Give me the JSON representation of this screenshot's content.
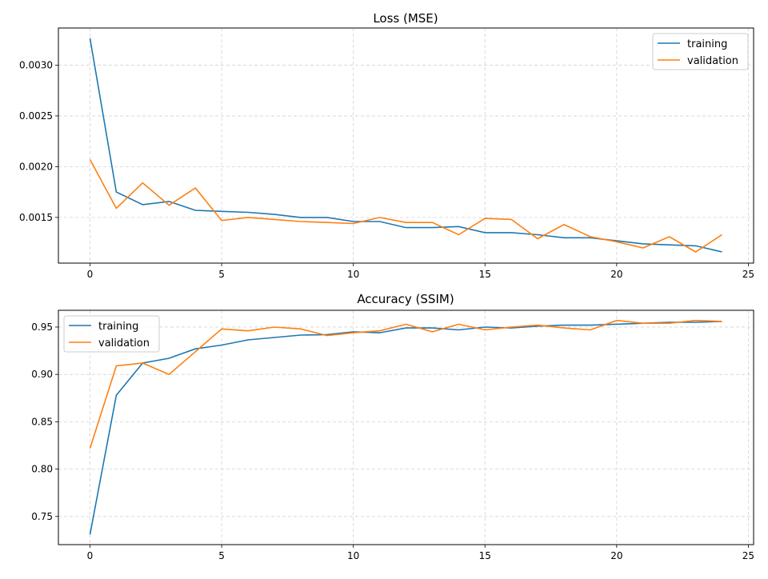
{
  "chart_data": [
    {
      "type": "line",
      "title": "Loss (MSE)",
      "xlabel": "",
      "ylabel": "",
      "xlim": [
        -1.2,
        25.2
      ],
      "ylim": [
        0.00105,
        0.003366
      ],
      "xticks": [
        0,
        5,
        10,
        15,
        20,
        25
      ],
      "xtick_labels": [
        "0",
        "5",
        "10",
        "15",
        "20",
        "25"
      ],
      "yticks": [
        0.0015,
        0.002,
        0.0025,
        0.003
      ],
      "ytick_labels": [
        "0.0015",
        "0.0020",
        "0.0025",
        "0.0030"
      ],
      "grid": true,
      "legend": "top-right",
      "x": [
        0,
        1,
        2,
        3,
        4,
        5,
        6,
        7,
        8,
        9,
        10,
        11,
        12,
        13,
        14,
        15,
        16,
        17,
        18,
        19,
        20,
        21,
        22,
        23,
        24
      ],
      "series": [
        {
          "name": "training",
          "color": "#1f77b4",
          "values": [
            0.003264,
            0.00175,
            0.001626,
            0.001657,
            0.00157,
            0.00156,
            0.00155,
            0.00153,
            0.0015,
            0.0015,
            0.00146,
            0.00146,
            0.0014,
            0.0014,
            0.00141,
            0.00135,
            0.00135,
            0.00133,
            0.0013,
            0.0013,
            0.00127,
            0.00124,
            0.00123,
            0.00122,
            0.00116
          ]
        },
        {
          "name": "validation",
          "color": "#ff7f0e",
          "values": [
            0.00207,
            0.00159,
            0.00184,
            0.00162,
            0.00179,
            0.00147,
            0.0015,
            0.00148,
            0.00146,
            0.00145,
            0.00144,
            0.0015,
            0.00145,
            0.00145,
            0.00133,
            0.00149,
            0.00148,
            0.00129,
            0.00143,
            0.00131,
            0.00126,
            0.0012,
            0.00131,
            0.00116,
            0.00133
          ]
        }
      ]
    },
    {
      "type": "line",
      "title": "Accuracy (SSIM)",
      "xlabel": "",
      "ylabel": "",
      "xlim": [
        -1.2,
        25.2
      ],
      "ylim": [
        0.7203,
        0.9677
      ],
      "xticks": [
        0,
        5,
        10,
        15,
        20,
        25
      ],
      "xtick_labels": [
        "0",
        "5",
        "10",
        "15",
        "20",
        "25"
      ],
      "yticks": [
        0.75,
        0.8,
        0.85,
        0.9,
        0.95
      ],
      "ytick_labels": [
        "0.75",
        "0.80",
        "0.85",
        "0.90",
        "0.95"
      ],
      "grid": true,
      "legend": "top-left",
      "x": [
        0,
        1,
        2,
        3,
        4,
        5,
        6,
        7,
        8,
        9,
        10,
        11,
        12,
        13,
        14,
        15,
        16,
        17,
        18,
        19,
        20,
        21,
        22,
        23,
        24
      ],
      "series": [
        {
          "name": "training",
          "color": "#1f77b4",
          "values": [
            0.731,
            0.878,
            0.912,
            0.917,
            0.927,
            0.931,
            0.9365,
            0.939,
            0.9415,
            0.942,
            0.945,
            0.944,
            0.949,
            0.949,
            0.947,
            0.95,
            0.949,
            0.951,
            0.952,
            0.952,
            0.953,
            0.954,
            0.955,
            0.955,
            0.956
          ]
        },
        {
          "name": "validation",
          "color": "#ff7f0e",
          "values": [
            0.822,
            0.909,
            0.912,
            0.9,
            0.924,
            0.948,
            0.946,
            0.95,
            0.948,
            0.941,
            0.944,
            0.946,
            0.953,
            0.945,
            0.953,
            0.947,
            0.95,
            0.952,
            0.949,
            0.947,
            0.957,
            0.954,
            0.954,
            0.957,
            0.956
          ]
        }
      ]
    }
  ]
}
